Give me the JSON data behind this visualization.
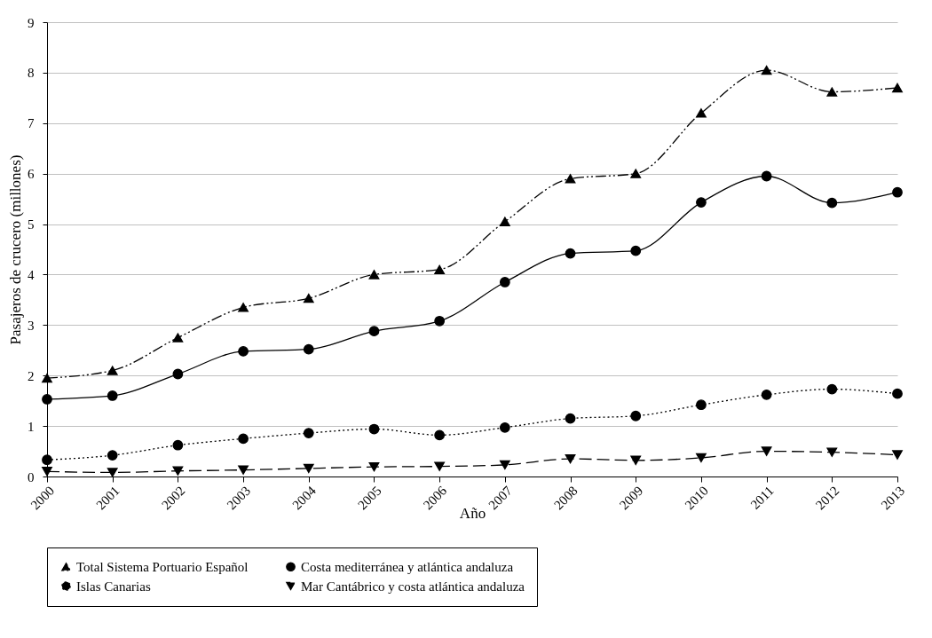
{
  "chart_data": {
    "type": "line",
    "xlabel": "Año",
    "ylabel": "Pasajeros de crucero (millones)",
    "categories": [
      "2000",
      "2001",
      "2002",
      "2003",
      "2004",
      "2005",
      "2006",
      "2007",
      "2008",
      "2009",
      "2010",
      "2011",
      "2012",
      "2013"
    ],
    "ylim": [
      0,
      9
    ],
    "yticks": [
      0,
      1,
      2,
      3,
      4,
      5,
      6,
      7,
      8,
      9
    ],
    "grid": "y",
    "legend": "bottom",
    "series": [
      {
        "name": "Total Sistema Portuario Español",
        "color": "#000000",
        "marker": "triangle",
        "line_style": "dashdot",
        "values": [
          1.95,
          2.1,
          2.75,
          3.35,
          3.53,
          4.0,
          4.1,
          5.05,
          5.9,
          6.0,
          7.2,
          8.05,
          7.62,
          7.7
        ]
      },
      {
        "name": "Costa mediterránea y atlántica andaluza",
        "color": "#000000",
        "marker": "circle",
        "line_style": "solid",
        "values": [
          1.53,
          1.6,
          2.03,
          2.48,
          2.52,
          2.88,
          3.08,
          3.85,
          4.42,
          4.47,
          5.43,
          5.95,
          5.42,
          5.63
        ]
      },
      {
        "name": "Islas Canarias",
        "color": "#000000",
        "marker": "circle",
        "line_style": "dotted",
        "values": [
          0.33,
          0.42,
          0.62,
          0.75,
          0.86,
          0.94,
          0.82,
          0.97,
          1.15,
          1.2,
          1.42,
          1.62,
          1.73,
          1.64
        ]
      },
      {
        "name": "Mar Cantábrico y costa atlántica andaluza",
        "color": "#000000",
        "marker": "triangle-down",
        "line_style": "dashed",
        "values": [
          0.1,
          0.08,
          0.11,
          0.13,
          0.16,
          0.19,
          0.2,
          0.23,
          0.35,
          0.32,
          0.37,
          0.5,
          0.48,
          0.43
        ]
      }
    ]
  }
}
